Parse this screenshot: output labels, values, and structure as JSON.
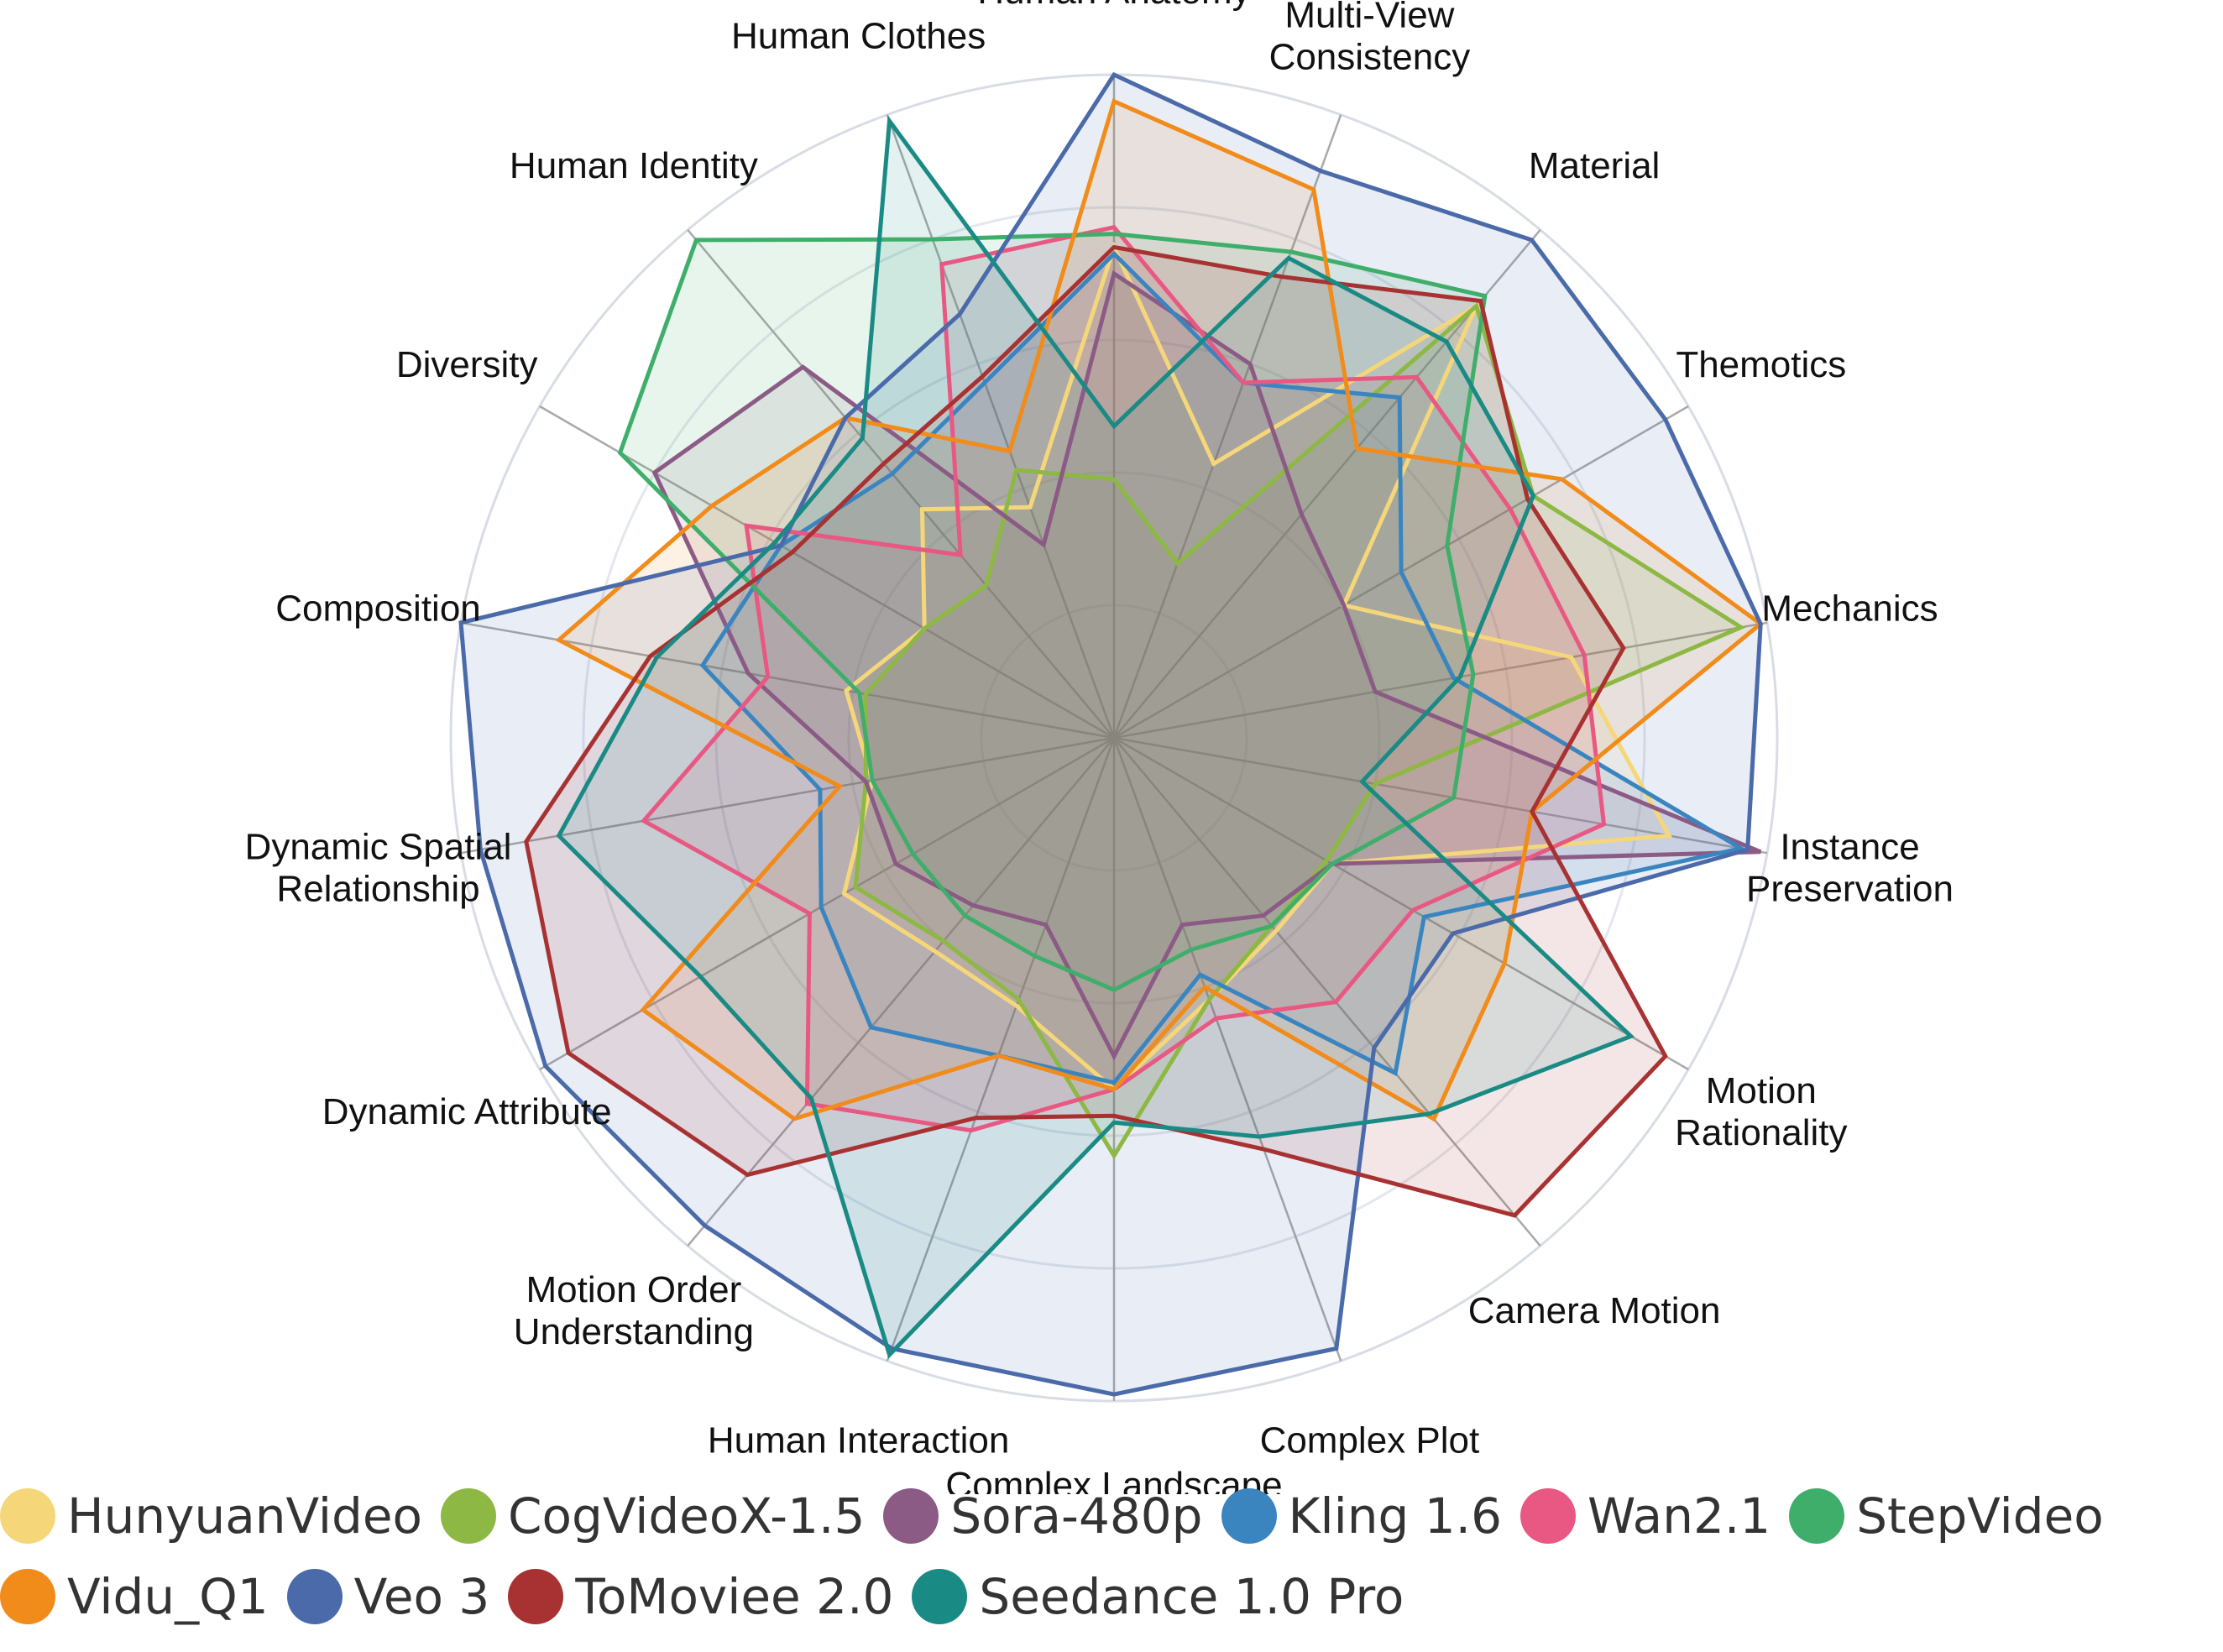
{
  "chart_data": {
    "type": "radar",
    "axes": [
      "Human Anatomy",
      "Multi-View Consistency",
      "Material",
      "Themotics",
      "Mechanics",
      "Instance Preservation",
      "Motion Rationality",
      "Camera Motion",
      "Complex Plot",
      "Complex Landscape",
      "Human Interaction",
      "Motion Order Understanding",
      "Dynamic Attribute",
      "Dynamic Spatial Relationship",
      "Composition",
      "Diversity",
      "Human Identity",
      "Human Clothes"
    ],
    "axes_display": [
      [
        "Human Anatomy"
      ],
      [
        "Multi-View",
        "Consistency"
      ],
      [
        "Material"
      ],
      [
        "Themotics"
      ],
      [
        "Mechanics"
      ],
      [
        "Instance",
        "Preservation"
      ],
      [
        "Motion",
        "Rationality"
      ],
      [
        "Camera Motion"
      ],
      [
        "Complex Plot"
      ],
      [
        "Complex Landscape"
      ],
      [
        "Human Interaction"
      ],
      [
        "Motion Order",
        "Understanding"
      ],
      [
        "Dynamic Attribute"
      ],
      [
        "Dynamic Spatial",
        "Relationship"
      ],
      [
        "Composition"
      ],
      [
        "Diversity"
      ],
      [
        "Human Identity"
      ],
      [
        "Human Clothes"
      ]
    ],
    "rmax": 1.0,
    "gridlines": true,
    "series": [
      {
        "name": "HunyuanVideo",
        "color": "#F5D77A",
        "values": [
          0.74,
          0.44,
          0.85,
          0.4,
          0.7,
          0.85,
          0.38,
          0.38,
          0.42,
          0.53,
          0.43,
          0.42,
          0.47,
          0.37,
          0.41,
          0.33,
          0.45,
          0.37
        ]
      },
      {
        "name": "CogVideoX-1.5",
        "color": "#8DB843",
        "values": [
          0.39,
          0.28,
          0.85,
          0.73,
          0.96,
          0.4,
          0.37,
          0.37,
          0.42,
          0.63,
          0.42,
          0.4,
          0.45,
          0.38,
          0.38,
          0.33,
          0.3,
          0.43
        ]
      },
      {
        "name": "Sora-480p",
        "color": "#8B5B86",
        "values": [
          0.7,
          0.6,
          0.44,
          0.4,
          0.4,
          0.99,
          0.38,
          0.35,
          0.3,
          0.48,
          0.3,
          0.33,
          0.38,
          0.38,
          0.56,
          0.8,
          0.73,
          0.31
        ]
      },
      {
        "name": "Kling 1.6",
        "color": "#3A85C0",
        "values": [
          0.73,
          0.57,
          0.67,
          0.5,
          0.52,
          0.96,
          0.54,
          0.66,
          0.38,
          0.52,
          0.51,
          0.57,
          0.51,
          0.45,
          0.63,
          0.58,
          0.52,
          0.57
        ]
      },
      {
        "name": "Wan2.1",
        "color": "#E85882",
        "values": [
          0.77,
          0.57,
          0.71,
          0.69,
          0.72,
          0.75,
          0.52,
          0.52,
          0.45,
          0.53,
          0.63,
          0.72,
          0.53,
          0.72,
          0.53,
          0.64,
          0.36,
          0.76
        ]
      },
      {
        "name": "StepVideo",
        "color": "#3FAE6A",
        "values": [
          0.76,
          0.78,
          0.87,
          0.58,
          0.55,
          0.52,
          0.38,
          0.37,
          0.34,
          0.38,
          0.35,
          0.35,
          0.35,
          0.37,
          0.39,
          0.86,
          0.98,
          0.8
        ]
      },
      {
        "name": "Vidu_Q1",
        "color": "#F18B1A",
        "values": [
          0.96,
          0.88,
          0.57,
          0.78,
          0.99,
          0.64,
          0.68,
          0.75,
          0.4,
          0.53,
          0.51,
          0.75,
          0.82,
          0.42,
          0.85,
          0.7,
          0.63,
          0.46
        ]
      },
      {
        "name": "Veo 3",
        "color": "#4A6AAA",
        "values": [
          1.0,
          0.91,
          0.98,
          0.96,
          0.99,
          0.97,
          0.59,
          0.61,
          0.98,
          0.99,
          0.98,
          0.96,
          0.99,
          0.97,
          1.0,
          0.58,
          0.63,
          0.68
        ]
      },
      {
        "name": "ToMoviee 2.0",
        "color": "#A83232",
        "values": [
          0.74,
          0.74,
          0.86,
          0.72,
          0.78,
          0.64,
          0.96,
          0.94,
          0.66,
          0.57,
          0.61,
          0.86,
          0.95,
          0.9,
          0.71,
          0.56,
          0.54,
          0.58
        ]
      },
      {
        "name": "Seedance 1.0 Pro",
        "color": "#1A8A84",
        "values": [
          0.47,
          0.77,
          0.78,
          0.73,
          0.53,
          0.38,
          0.9,
          0.74,
          0.64,
          0.58,
          0.99,
          0.71,
          0.72,
          0.85,
          0.7,
          0.59,
          0.59,
          0.99
        ]
      }
    ],
    "legend": [
      [
        "HunyuanVideo",
        "CogVideoX-1.5",
        "Sora-480p",
        "Kling 1.6",
        "Wan2.1",
        "StepVideo"
      ],
      [
        "Vidu_Q1",
        "Veo 3",
        "ToMoviee 2.0",
        "Seedance 1.0 Pro"
      ]
    ],
    "legend_placement": "bottom"
  }
}
